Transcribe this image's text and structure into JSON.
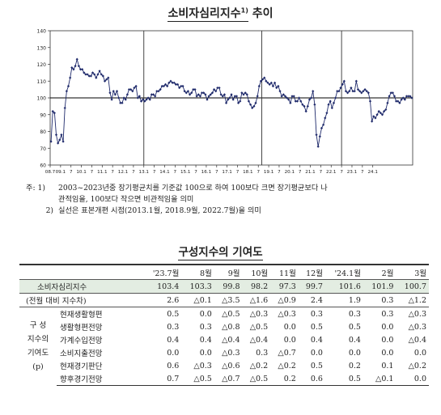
{
  "chart_title": "소비자심리지수",
  "chart_title_sup": "1)",
  "chart_title_suffix": "추이",
  "chart_data": {
    "type": "line",
    "ylim": [
      60,
      140
    ],
    "yticks": [
      60,
      70,
      80,
      90,
      100,
      110,
      120,
      130,
      140
    ],
    "xticks": [
      "08.7",
      "09.1",
      "7",
      "10.1",
      "7",
      "11.1",
      "7",
      "12.1",
      "7",
      "13.1",
      "7",
      "14.1",
      "7",
      "15.1",
      "7",
      "16.1",
      "7",
      "17.1",
      "7",
      "18.1",
      "7",
      "19.1",
      "7",
      "20.1",
      "7",
      "21.1",
      "7",
      "22.1",
      "7",
      "23.1",
      "7",
      "24.1"
    ],
    "reference_line": 100,
    "vertical_breaks": [
      "13.1",
      "18.9",
      "22.7"
    ],
    "series": [
      {
        "start": "2008.7",
        "values": [
          74,
          92,
          91,
          78,
          73,
          75,
          78,
          74,
          94,
          104,
          107,
          112,
          118,
          117,
          119,
          123,
          119,
          117,
          117,
          115,
          114,
          114,
          113,
          113,
          115,
          114,
          112,
          114,
          116,
          114,
          113,
          110,
          111,
          112,
          103,
          99,
          104,
          102,
          104,
          100,
          97,
          97,
          100,
          99,
          102,
          105,
          105,
          104,
          106,
          107,
          100,
          101,
          98,
          99,
          98,
          99,
          100,
          99,
          102,
          102,
          101,
          104,
          104,
          105,
          107,
          107,
          108,
          107,
          109,
          110,
          109,
          109,
          108,
          108,
          106,
          107,
          107,
          104,
          103,
          104,
          102,
          103,
          105,
          105,
          101,
          102,
          101,
          103,
          103,
          102,
          99,
          101,
          102,
          103,
          105,
          104,
          106,
          106,
          102,
          101,
          102,
          97,
          99,
          100,
          102,
          99,
          101,
          101,
          97,
          98,
          103,
          102,
          103,
          102,
          98,
          96,
          94,
          95,
          97,
          101,
          107,
          110,
          111,
          112,
          110,
          109,
          108,
          109,
          107,
          109,
          106,
          107,
          104,
          101,
          102,
          101,
          100,
          99,
          97,
          101,
          101,
          98,
          98,
          100,
          98,
          96,
          95,
          92,
          95,
          99,
          100,
          104,
          96,
          78,
          71,
          77,
          82,
          84,
          88,
          91,
          96,
          98,
          94,
          97,
          100,
          104,
          104,
          106,
          108,
          110,
          104,
          103,
          104,
          106,
          104,
          104,
          110,
          105,
          104,
          103,
          104,
          105,
          104,
          103,
          98,
          86,
          89,
          88,
          90,
          92,
          91,
          90,
          92,
          93,
          97,
          101,
          103,
          103,
          101,
          98,
          98,
          97,
          99,
          100,
          99,
          101,
          101,
          101,
          100
        ]
      }
    ]
  },
  "notes": {
    "note1_label": "주:  1)",
    "note1_text": "2003~2023년중 장기평균치를 기준값 100으로 하여 100보다 크면 장기평균보다 나",
    "note1_text2": "관적임을, 100보다 작으면 비관적임을 의미",
    "note2_label": "2)",
    "note2_text": "실선은 표본개편 시점(2013.1월, 2018.9월, 2022.7월)을 의미"
  },
  "table_title": "구성지수의 기여도",
  "table": {
    "headers": [
      "'23.7월",
      "8월",
      "9월",
      "10월",
      "11월",
      "12월",
      "'24.1월",
      "2월",
      "3월"
    ],
    "csi_row": {
      "label": "소비자심리지수",
      "values": [
        "103.4",
        "103.3",
        "99.8",
        "98.2",
        "97.3",
        "99.7",
        "101.6",
        "101.9",
        "100.7"
      ]
    },
    "change_row": {
      "label": "(전월 대비 지수차)",
      "values": [
        "2.6",
        "△0.1",
        "△3.5",
        "△1.6",
        "△0.9",
        "2.4",
        "1.9",
        "0.3",
        "△1.2"
      ]
    },
    "group_label_lines": [
      "구   성",
      "지수의",
      "기여도",
      "(p)"
    ],
    "components": [
      {
        "label": "현재생활형편",
        "values": [
          "0.5",
          "0.0",
          "△0.5",
          "△0.3",
          "△0.3",
          "0.3",
          "0.3",
          "0.3",
          "△0.3"
        ]
      },
      {
        "label": "생활형편전망",
        "values": [
          "0.3",
          "0.3",
          "△0.8",
          "△0.5",
          "0.0",
          "0.5",
          "0.5",
          "0.0",
          "△0.3"
        ]
      },
      {
        "label": "가계수입전망",
        "values": [
          "0.4",
          "0.4",
          "△0.4",
          "△0.4",
          "0.0",
          "0.4",
          "0.4",
          "0.0",
          "△0.4"
        ]
      },
      {
        "label": "소비지출전망",
        "values": [
          "0.0",
          "0.0",
          "△0.3",
          "0.3",
          "△0.7",
          "0.0",
          "0.0",
          "0.0",
          "0.0"
        ]
      },
      {
        "label": "현재경기판단",
        "values": [
          "0.6",
          "△0.3",
          "△0.6",
          "△0.2",
          "△0.2",
          "0.5",
          "0.2",
          "0.1",
          "△0.2"
        ]
      },
      {
        "label": "향후경기전망",
        "values": [
          "0.7",
          "△0.5",
          "△0.7",
          "△0.5",
          "0.2",
          "0.6",
          "0.5",
          "△0.1",
          "0.0"
        ]
      }
    ]
  },
  "colors": {
    "line": "#1f2a6b",
    "reference": "#000000",
    "highlight_row": "#e3ede2"
  }
}
